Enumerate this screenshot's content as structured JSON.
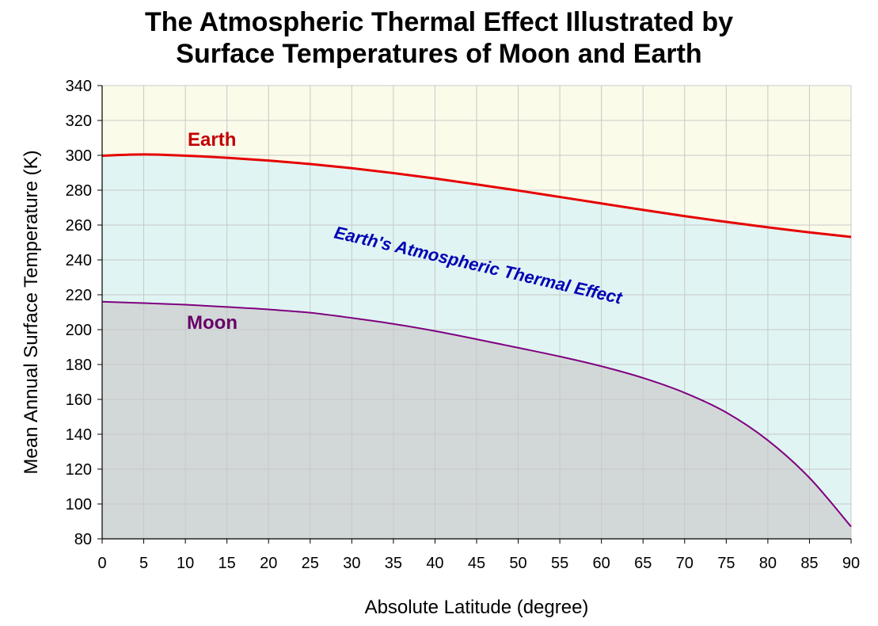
{
  "chart_data": {
    "type": "area",
    "title_lines": [
      "The Atmospheric Thermal Effect Illustrated by",
      "Surface Temperatures of Moon and Earth"
    ],
    "xlabel": "Absolute Latitude (degree)",
    "ylabel": "Mean Annual Surface Temperature (K)",
    "xlim": [
      0,
      90
    ],
    "ylim": [
      80,
      340
    ],
    "x_ticks": [
      0,
      5,
      10,
      15,
      20,
      25,
      30,
      35,
      40,
      45,
      50,
      55,
      60,
      65,
      70,
      75,
      80,
      85,
      90
    ],
    "y_ticks": [
      80,
      100,
      120,
      140,
      160,
      180,
      200,
      220,
      240,
      260,
      280,
      300,
      320,
      340
    ],
    "grid": true,
    "series": [
      {
        "name": "Earth",
        "label": "Earth",
        "color": "#e60000",
        "label_color": "#c00000",
        "x": [
          0,
          5,
          10,
          15,
          20,
          25,
          30,
          35,
          40,
          45,
          50,
          55,
          60,
          65,
          70,
          75,
          80,
          85,
          90
        ],
        "values": [
          299.8,
          300.5,
          299.8,
          298.6,
          297.0,
          295.0,
          292.6,
          289.8,
          286.7,
          283.3,
          279.8,
          276.1,
          272.4,
          268.7,
          265.1,
          261.8,
          258.7,
          255.8,
          253.2
        ]
      },
      {
        "name": "Moon",
        "label": "Moon",
        "color": "#800080",
        "label_color": "#660066",
        "x": [
          0,
          5,
          10,
          15,
          20,
          25,
          30,
          35,
          40,
          45,
          50,
          55,
          60,
          65,
          70,
          75,
          80,
          85,
          90
        ],
        "values": [
          216.0,
          215.2,
          214.3,
          213.0,
          211.6,
          209.7,
          206.7,
          203.3,
          199.2,
          194.5,
          189.6,
          184.6,
          179.0,
          172.3,
          163.8,
          152.5,
          136.5,
          115.0,
          87.0
        ]
      }
    ],
    "annotation": {
      "text": "Earth's Atmospheric Thermal Effect",
      "color": "#0000b4"
    },
    "fills": {
      "above_earth": "#fbfbea",
      "between": "#e0f5f3",
      "below_moon": "#d2d8d8",
      "gridline": "#c8c8c8"
    }
  }
}
